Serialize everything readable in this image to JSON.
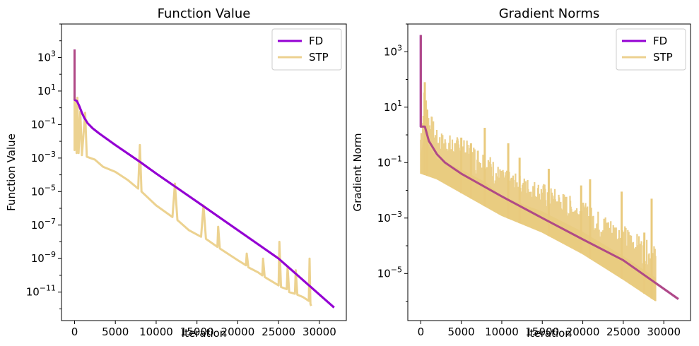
{
  "chart_data": [
    {
      "type": "line",
      "title": "Function Value",
      "xlabel": "Iteration",
      "ylabel": "Function Value",
      "yscale": "log",
      "xlim": [
        -1600,
        33300
      ],
      "ylim": [
        2e-13,
        100000.0
      ],
      "xticks": [
        0,
        5000,
        10000,
        15000,
        20000,
        25000,
        30000
      ],
      "xtick_labels": [
        "0",
        "5000",
        "10000",
        "15000",
        "20000",
        "25000",
        "30000"
      ],
      "yticks": [
        3,
        1,
        -1,
        -3,
        -5,
        -7,
        -9,
        -11
      ],
      "ytick_labels": [
        "10^3",
        "10^1",
        "10^-1",
        "10^-3",
        "10^-5",
        "10^-7",
        "10^-9",
        "10^-11"
      ],
      "legend_position": "top-right",
      "series": [
        {
          "name": "FD",
          "color": "#9400D3",
          "points": [
            [
              0,
              3000
            ],
            [
              0,
              3
            ],
            [
              300,
              2.5
            ],
            [
              600,
              1.2
            ],
            [
              900,
              0.5
            ],
            [
              1200,
              0.25
            ],
            [
              1600,
              0.12
            ],
            [
              2200,
              0.06
            ],
            [
              3000,
              0.03
            ],
            [
              5000,
              0.006
            ],
            [
              8000,
              0.0006
            ],
            [
              10000,
              0.00012
            ],
            [
              15000,
              2.5e-06
            ],
            [
              20000,
              5e-08
            ],
            [
              25000,
              1e-09
            ],
            [
              31800,
              1.2e-12
            ]
          ]
        },
        {
          "name": "STP",
          "color": "#E9CA7D",
          "points": [
            [
              0,
              3000
            ],
            [
              0,
              0.003
            ],
            [
              150,
              2.5
            ],
            [
              250,
              0.002
            ],
            [
              350,
              4
            ],
            [
              500,
              0.002
            ],
            [
              700,
              0.6
            ],
            [
              900,
              0.0015
            ],
            [
              1300,
              0.5
            ],
            [
              1500,
              0.0012
            ],
            [
              2500,
              0.0008
            ],
            [
              3500,
              0.0003
            ],
            [
              5000,
              0.00015
            ],
            [
              6500,
              5e-05
            ],
            [
              7800,
              1.5e-05
            ],
            [
              8000,
              0.006
            ],
            [
              8200,
              1e-05
            ],
            [
              10000,
              1.5e-06
            ],
            [
              12000,
              3e-07
            ],
            [
              12300,
              3e-05
            ],
            [
              12600,
              2e-07
            ],
            [
              14000,
              5e-08
            ],
            [
              15500,
              2e-08
            ],
            [
              15800,
              1.5e-06
            ],
            [
              16100,
              1.5e-08
            ],
            [
              17500,
              5e-09
            ],
            [
              17600,
              8e-08
            ],
            [
              17800,
              4e-09
            ],
            [
              20000,
              8e-10
            ],
            [
              21000,
              4e-10
            ],
            [
              21100,
              2e-09
            ],
            [
              21300,
              3e-10
            ],
            [
              22500,
              1.5e-10
            ],
            [
              23000,
              1e-10
            ],
            [
              23100,
              1e-09
            ],
            [
              23300,
              8e-11
            ],
            [
              25000,
              2.5e-11
            ],
            [
              25100,
              1e-08
            ],
            [
              25300,
              2e-11
            ],
            [
              26000,
              1.5e-11
            ],
            [
              26100,
              3e-10
            ],
            [
              26300,
              1e-11
            ],
            [
              27000,
              8e-12
            ],
            [
              27100,
              2e-10
            ],
            [
              27300,
              7e-12
            ],
            [
              28000,
              5e-12
            ],
            [
              28700,
              3e-12
            ],
            [
              28800,
              1e-09
            ],
            [
              28900,
              2e-12
            ],
            [
              29000,
              1.5e-12
            ]
          ]
        }
      ]
    },
    {
      "type": "line",
      "title": "Gradient Norms",
      "xlabel": "Iteration",
      "ylabel": "Gradient Norm",
      "yscale": "log",
      "xlim": [
        -1600,
        33300
      ],
      "ylim": [
        2e-07,
        10000.0
      ],
      "xticks": [
        0,
        5000,
        10000,
        15000,
        20000,
        25000,
        30000
      ],
      "xtick_labels": [
        "0",
        "5000",
        "10000",
        "15000",
        "20000",
        "25000",
        "30000"
      ],
      "yticks": [
        3,
        1,
        -1,
        -3,
        -5
      ],
      "ytick_labels": [
        "10^3",
        "10^1",
        "10^-1",
        "10^-3",
        "10^-5"
      ],
      "legend_position": "top-right",
      "series": [
        {
          "name": "FD",
          "color": "#9400D3",
          "points": [
            [
              0,
              4000
            ],
            [
              0,
              2
            ],
            [
              500,
              2
            ],
            [
              1000,
              0.6
            ],
            [
              2000,
              0.2
            ],
            [
              3000,
              0.1
            ],
            [
              5000,
              0.04
            ],
            [
              10000,
              0.006
            ],
            [
              15000,
              0.001
            ],
            [
              20000,
              0.00017
            ],
            [
              25000,
              3e-05
            ],
            [
              31800,
              1.2e-06
            ]
          ]
        },
        {
          "name": "STP",
          "color": "#E9CA7D",
          "upper": [
            [
              0,
              2
            ],
            [
              300,
              30
            ],
            [
              500,
              80
            ],
            [
              1000,
              10
            ],
            [
              2000,
              1.5
            ],
            [
              5000,
              0.8
            ],
            [
              8000,
              0.3
            ],
            [
              10000,
              0.06
            ],
            [
              15000,
              0.02
            ],
            [
              20000,
              0.004
            ],
            [
              25000,
              0.0006
            ],
            [
              29000,
              0.0001
            ]
          ],
          "lower": [
            [
              0,
              0.04
            ],
            [
              2000,
              0.025
            ],
            [
              5000,
              0.008
            ],
            [
              10000,
              0.0012
            ],
            [
              15000,
              0.0003
            ],
            [
              20000,
              5e-05
            ],
            [
              25000,
              6e-06
            ],
            [
              29000,
              1e-06
            ]
          ],
          "spikes": [
            [
              500,
              80
            ],
            [
              800,
              8
            ],
            [
              5000,
              0.8
            ],
            [
              6200,
              0.5
            ],
            [
              7900,
              1.8
            ],
            [
              10800,
              0.5
            ],
            [
              12200,
              0.15
            ],
            [
              15800,
              0.06
            ],
            [
              19800,
              0.015
            ],
            [
              20900,
              0.025
            ],
            [
              24800,
              0.009
            ],
            [
              27600,
              0.0003
            ],
            [
              28500,
              0.005
            ]
          ]
        }
      ]
    }
  ]
}
